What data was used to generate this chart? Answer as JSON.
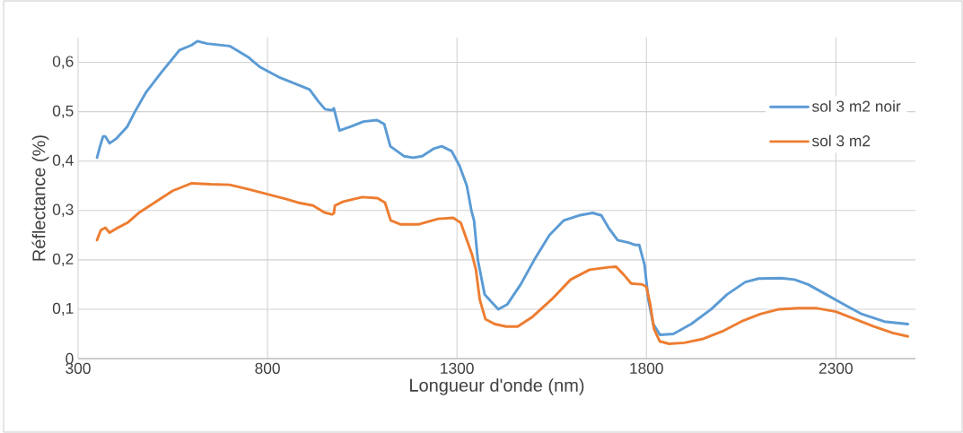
{
  "chart_data": {
    "type": "line",
    "xlabel": "Longueur d'onde (nm)",
    "ylabel": "Réflectance (%)",
    "xlim": [
      300,
      2510
    ],
    "ylim": [
      0,
      0.65
    ],
    "xticks": [
      300,
      800,
      1300,
      1800,
      2300
    ],
    "yticks": [
      {
        "value": 0,
        "label": "0"
      },
      {
        "value": 0.1,
        "label": "0,1"
      },
      {
        "value": 0.2,
        "label": "0,2"
      },
      {
        "value": 0.3,
        "label": "0,3"
      },
      {
        "value": 0.4,
        "label": "0,4"
      },
      {
        "value": 0.5,
        "label": "0,5"
      },
      {
        "value": 0.6,
        "label": "0,6"
      }
    ],
    "grid": true,
    "legend": "right",
    "marker": "none",
    "line_style": "solid",
    "series": [
      {
        "name": "sol 3 m2 noir",
        "color": "#5b9bd5",
        "x": [
          350,
          358,
          366,
          372,
          383,
          400,
          430,
          450,
          480,
          520,
          568,
          600,
          615,
          640,
          700,
          750,
          781,
          830,
          876,
          911,
          935,
          952,
          970,
          975,
          990,
          1020,
          1053,
          1089,
          1108,
          1124,
          1160,
          1184,
          1208,
          1238,
          1260,
          1286,
          1307,
          1326,
          1338,
          1345,
          1355,
          1373,
          1409,
          1433,
          1468,
          1504,
          1544,
          1582,
          1622,
          1658,
          1681,
          1700,
          1724,
          1753,
          1771,
          1781,
          1795,
          1805,
          1818,
          1836,
          1871,
          1918,
          1971,
          2013,
          2061,
          2096,
          2155,
          2191,
          2227,
          2274,
          2321,
          2369,
          2428,
          2490
        ],
        "values": [
          0.407,
          0.43,
          0.45,
          0.45,
          0.436,
          0.445,
          0.47,
          0.5,
          0.54,
          0.58,
          0.625,
          0.635,
          0.643,
          0.638,
          0.633,
          0.61,
          0.59,
          0.57,
          0.556,
          0.545,
          0.52,
          0.505,
          0.503,
          0.507,
          0.462,
          0.47,
          0.48,
          0.483,
          0.475,
          0.43,
          0.41,
          0.407,
          0.41,
          0.425,
          0.43,
          0.42,
          0.39,
          0.35,
          0.3,
          0.28,
          0.2,
          0.13,
          0.1,
          0.11,
          0.15,
          0.2,
          0.25,
          0.28,
          0.29,
          0.295,
          0.29,
          0.265,
          0.24,
          0.235,
          0.23,
          0.23,
          0.19,
          0.12,
          0.07,
          0.048,
          0.05,
          0.07,
          0.1,
          0.13,
          0.155,
          0.162,
          0.163,
          0.16,
          0.15,
          0.13,
          0.11,
          0.09,
          0.075,
          0.07
        ]
      },
      {
        "name": "sol 3 m2",
        "color": "#ed7d31",
        "x": [
          350,
          360,
          372,
          383,
          400,
          430,
          460,
          500,
          550,
          600,
          650,
          700,
          750,
          800,
          850,
          880,
          920,
          950,
          970,
          975,
          978,
          1000,
          1050,
          1090,
          1110,
          1125,
          1150,
          1200,
          1250,
          1290,
          1310,
          1340,
          1350,
          1360,
          1375,
          1400,
          1430,
          1460,
          1500,
          1550,
          1600,
          1650,
          1700,
          1720,
          1740,
          1760,
          1790,
          1800,
          1810,
          1820,
          1835,
          1860,
          1900,
          1950,
          2000,
          2050,
          2100,
          2150,
          2200,
          2250,
          2300,
          2350,
          2400,
          2450,
          2490
        ],
        "values": [
          0.24,
          0.26,
          0.265,
          0.255,
          0.263,
          0.275,
          0.295,
          0.315,
          0.34,
          0.355,
          0.353,
          0.352,
          0.343,
          0.333,
          0.323,
          0.316,
          0.31,
          0.296,
          0.292,
          0.294,
          0.31,
          0.318,
          0.327,
          0.325,
          0.316,
          0.28,
          0.272,
          0.272,
          0.283,
          0.285,
          0.275,
          0.21,
          0.18,
          0.12,
          0.08,
          0.07,
          0.065,
          0.065,
          0.085,
          0.12,
          0.16,
          0.18,
          0.185,
          0.186,
          0.17,
          0.152,
          0.15,
          0.145,
          0.11,
          0.06,
          0.035,
          0.03,
          0.032,
          0.04,
          0.055,
          0.075,
          0.09,
          0.1,
          0.102,
          0.102,
          0.095,
          0.08,
          0.065,
          0.052,
          0.045
        ]
      }
    ]
  }
}
